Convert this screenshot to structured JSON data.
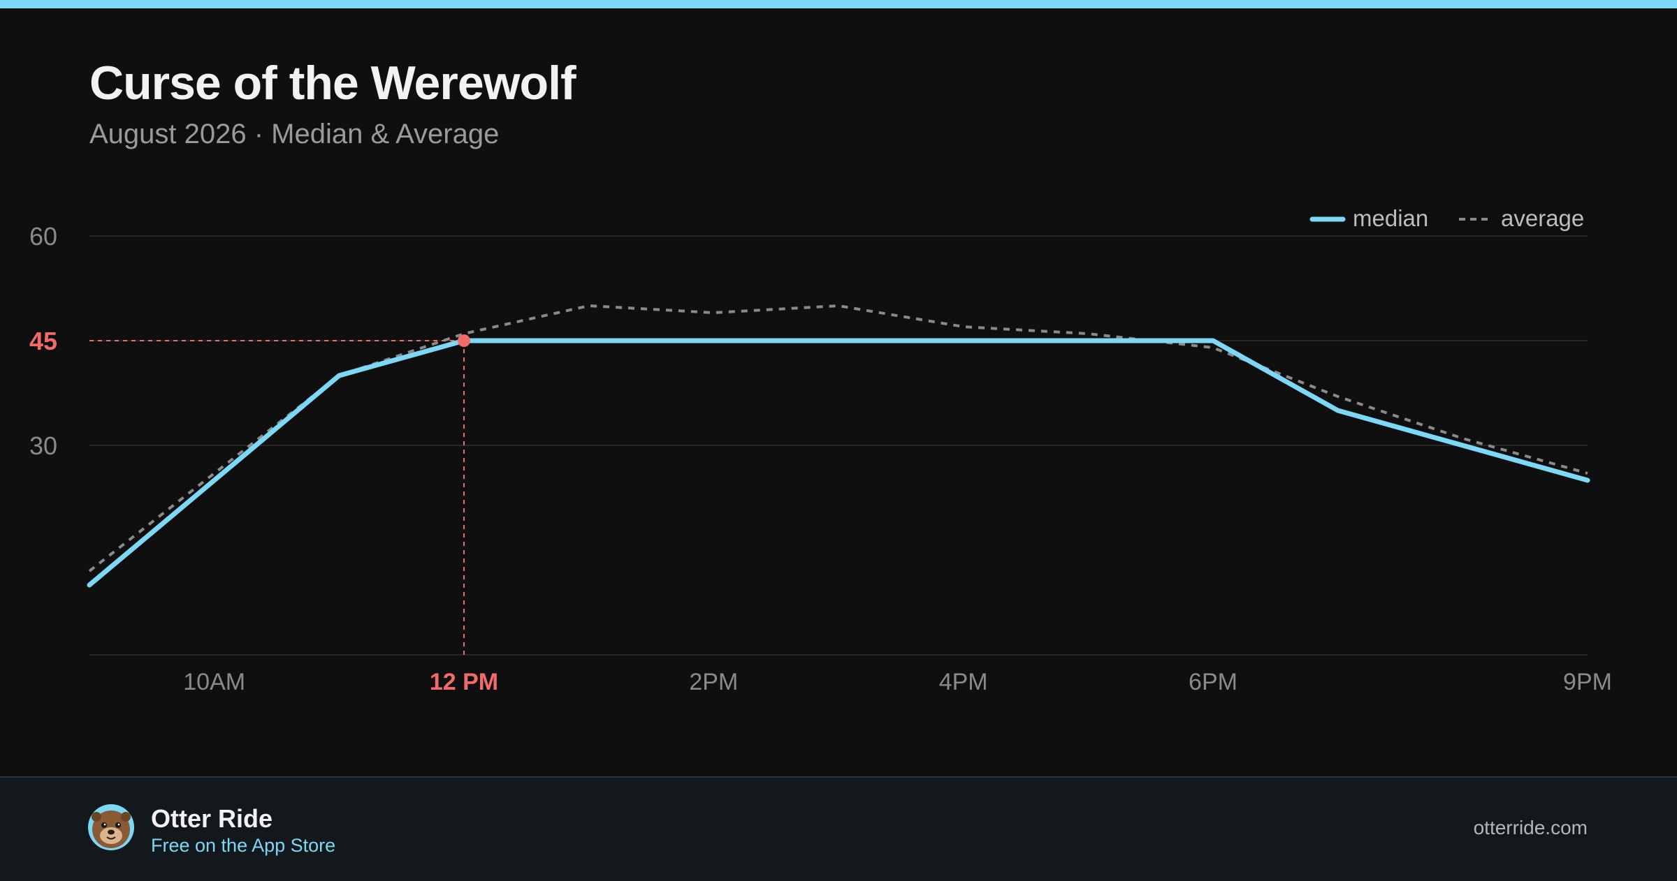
{
  "header": {
    "title": "Curse of the Werewolf",
    "subtitle": "August 2026 · Median & Average"
  },
  "colors": {
    "accent": "#7dd8f6",
    "highlight": "#f26b6b",
    "average": "#8a8a8a",
    "background": "#0f0f0f",
    "footer_bg": "#13181d"
  },
  "chart_data": {
    "type": "line",
    "x_ticks": [
      "10AM",
      "12 PM",
      "2PM",
      "4PM",
      "6PM",
      "9PM"
    ],
    "x_tick_hours": [
      10,
      12,
      14,
      16,
      18,
      21
    ],
    "y_ticks": [
      30,
      45,
      60
    ],
    "ylim": [
      0,
      60
    ],
    "xlim": [
      9,
      21
    ],
    "grid": true,
    "legend_position": "top-right",
    "series": [
      {
        "name": "median",
        "style": "solid",
        "x": [
          9,
          11,
          12,
          13,
          14,
          15,
          16,
          17,
          18,
          19,
          20,
          21
        ],
        "y": [
          10,
          40,
          45,
          45,
          45,
          45,
          45,
          45,
          45,
          35,
          30,
          25
        ]
      },
      {
        "name": "average",
        "style": "dashed",
        "x": [
          9,
          11,
          12,
          13,
          14,
          15,
          16,
          17,
          18,
          19,
          20,
          21
        ],
        "y": [
          12,
          40,
          46,
          50,
          49,
          50,
          47,
          46,
          44,
          37,
          31,
          26
        ]
      }
    ],
    "highlight": {
      "x": 12,
      "y": 45,
      "x_label": "12 PM",
      "y_label": "45"
    }
  },
  "footer": {
    "avatar_icon": "otter-avatar-icon",
    "brand": "Otter Ride",
    "tagline": "Free on the App Store",
    "site": "otterride.com"
  }
}
